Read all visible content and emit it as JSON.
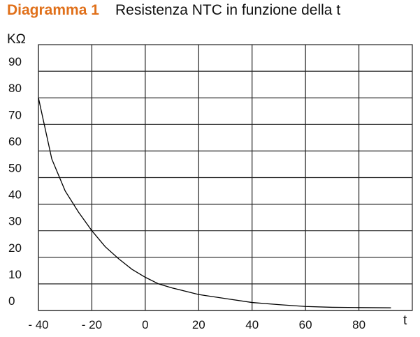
{
  "chart_data": {
    "type": "line",
    "title_label": "Diagramma 1",
    "title": "Resistenza NTC in funzione della t",
    "y_label": "KΩ",
    "x_label": "t",
    "x": [
      -40,
      -35,
      -30,
      -25,
      -20,
      -15,
      -10,
      -5,
      0,
      5,
      10,
      20,
      30,
      40,
      50,
      60,
      70,
      80,
      92
    ],
    "series": [
      {
        "name": "NTC",
        "color": "#000000",
        "values": [
          80,
          57,
          45,
          37,
          30,
          24,
          19.5,
          15.5,
          12.5,
          10,
          8.5,
          6,
          4.5,
          3,
          2.2,
          1.5,
          1.2,
          1.1,
          1
        ]
      }
    ],
    "xlim": [
      -40,
      100
    ],
    "ylim": [
      0,
      100
    ],
    "xticks": [
      {
        "value": -40,
        "label": "- 40"
      },
      {
        "value": -20,
        "label": "- 20"
      },
      0,
      20,
      40,
      60,
      80
    ],
    "yticks": [
      0,
      10,
      20,
      30,
      40,
      50,
      60,
      70,
      80,
      90
    ],
    "grid": true
  }
}
